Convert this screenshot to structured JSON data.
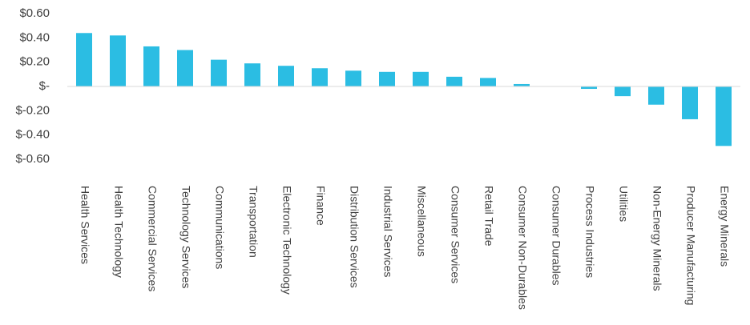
{
  "chart_data": {
    "type": "bar",
    "categories": [
      "Health Services",
      "Health Technology",
      "Commercial Services",
      "Technology Services",
      "Communications",
      "Transportation",
      "Electronic Technology",
      "Finance",
      "Distribution Services",
      "Industrial Services",
      "Miscellaneous",
      "Consumer Services",
      "Retail Trade",
      "Consumer Non-Durables",
      "Consumer Durables",
      "Process Industries",
      "Utilities",
      "Non-Energy Minerals",
      "Producer Manufacturing",
      "Energy Minerals"
    ],
    "values": [
      0.44,
      0.42,
      0.33,
      0.3,
      0.22,
      0.19,
      0.17,
      0.15,
      0.13,
      0.12,
      0.12,
      0.08,
      0.07,
      0.02,
      0,
      -0.02,
      -0.08,
      -0.15,
      -0.27,
      -0.49
    ],
    "color": "#2bbde3",
    "ylim": [
      -0.6,
      0.6
    ],
    "yticks": [
      {
        "value": 0.6,
        "label": "$0.60"
      },
      {
        "value": 0.4,
        "label": "$0.40"
      },
      {
        "value": 0.2,
        "label": "$0.20"
      },
      {
        "value": 0,
        "label": "$-"
      },
      {
        "value": -0.2,
        "label": "$-0.20"
      },
      {
        "value": -0.4,
        "label": "$-0.40"
      },
      {
        "value": -0.6,
        "label": "$-0.60"
      }
    ],
    "grid": false
  }
}
